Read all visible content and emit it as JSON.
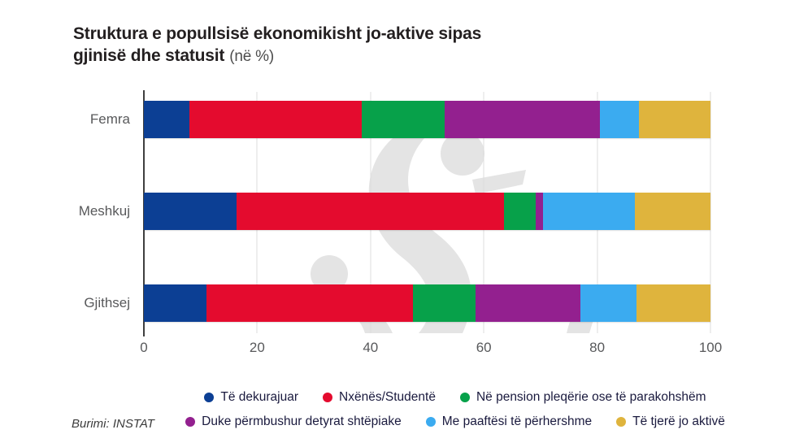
{
  "title": {
    "line1": "Struktura e popullsisë ekonomikisht jo-aktive sipas",
    "line2": "gjinisë dhe statusit",
    "unit_suffix": "(në %)"
  },
  "source_label": "Burimi: INSTAT",
  "colors": {
    "background": "#ffffff",
    "title_text": "#231f20",
    "category_text": "#58595b",
    "tick_text": "#58595b",
    "axis_line": "#3f3f3f",
    "gridline": "#dcdcdc",
    "legend_text": "#1a1a3e",
    "watermark": "#e4e4e4"
  },
  "chart_data": {
    "type": "bar",
    "orientation": "horizontal",
    "stacked": true,
    "title": "Struktura e popullsisë ekonomikisht jo-aktive sipas gjinisë dhe statusit (në %)",
    "categories": [
      "Femra",
      "Meshkuj",
      "Gjithsej"
    ],
    "series": [
      {
        "name": "Të dekurajuar",
        "color": "#0c3f94",
        "values": [
          8.1,
          16.4,
          11.0
        ]
      },
      {
        "name": "Nxënës/Studentë",
        "color": "#e40b2e",
        "values": [
          30.3,
          47.2,
          36.5
        ]
      },
      {
        "name": "Në pension pleqërie ose të parakohshëm",
        "color": "#07a14a",
        "values": [
          14.7,
          5.6,
          11.1
        ]
      },
      {
        "name": "Duke përmbushur detyrat shtëpiake",
        "color": "#93208f",
        "values": [
          27.4,
          1.2,
          18.4
        ]
      },
      {
        "name": "Me paaftësi të përhershme",
        "color": "#3babf0",
        "values": [
          6.9,
          16.3,
          10.0
        ]
      },
      {
        "name": "Të tjerë jo aktivë",
        "color": "#dfb43d",
        "values": [
          12.6,
          13.3,
          13.0
        ]
      }
    ],
    "x_axis": {
      "min": 0,
      "max": 100,
      "ticks": [
        "0",
        "20",
        "40",
        "60",
        "80",
        "100"
      ],
      "grid": true
    },
    "legend": {
      "position": "bottom",
      "rows": [
        [
          "Të dekurajuar",
          "Nxënës/Studentë",
          "Në pension pleqërie ose të parakohshëm"
        ],
        [
          "Duke përmbushur detyrat shtëpiake",
          "Me paaftësi të përhershme",
          "Të tjerë jo aktivë"
        ]
      ]
    }
  }
}
